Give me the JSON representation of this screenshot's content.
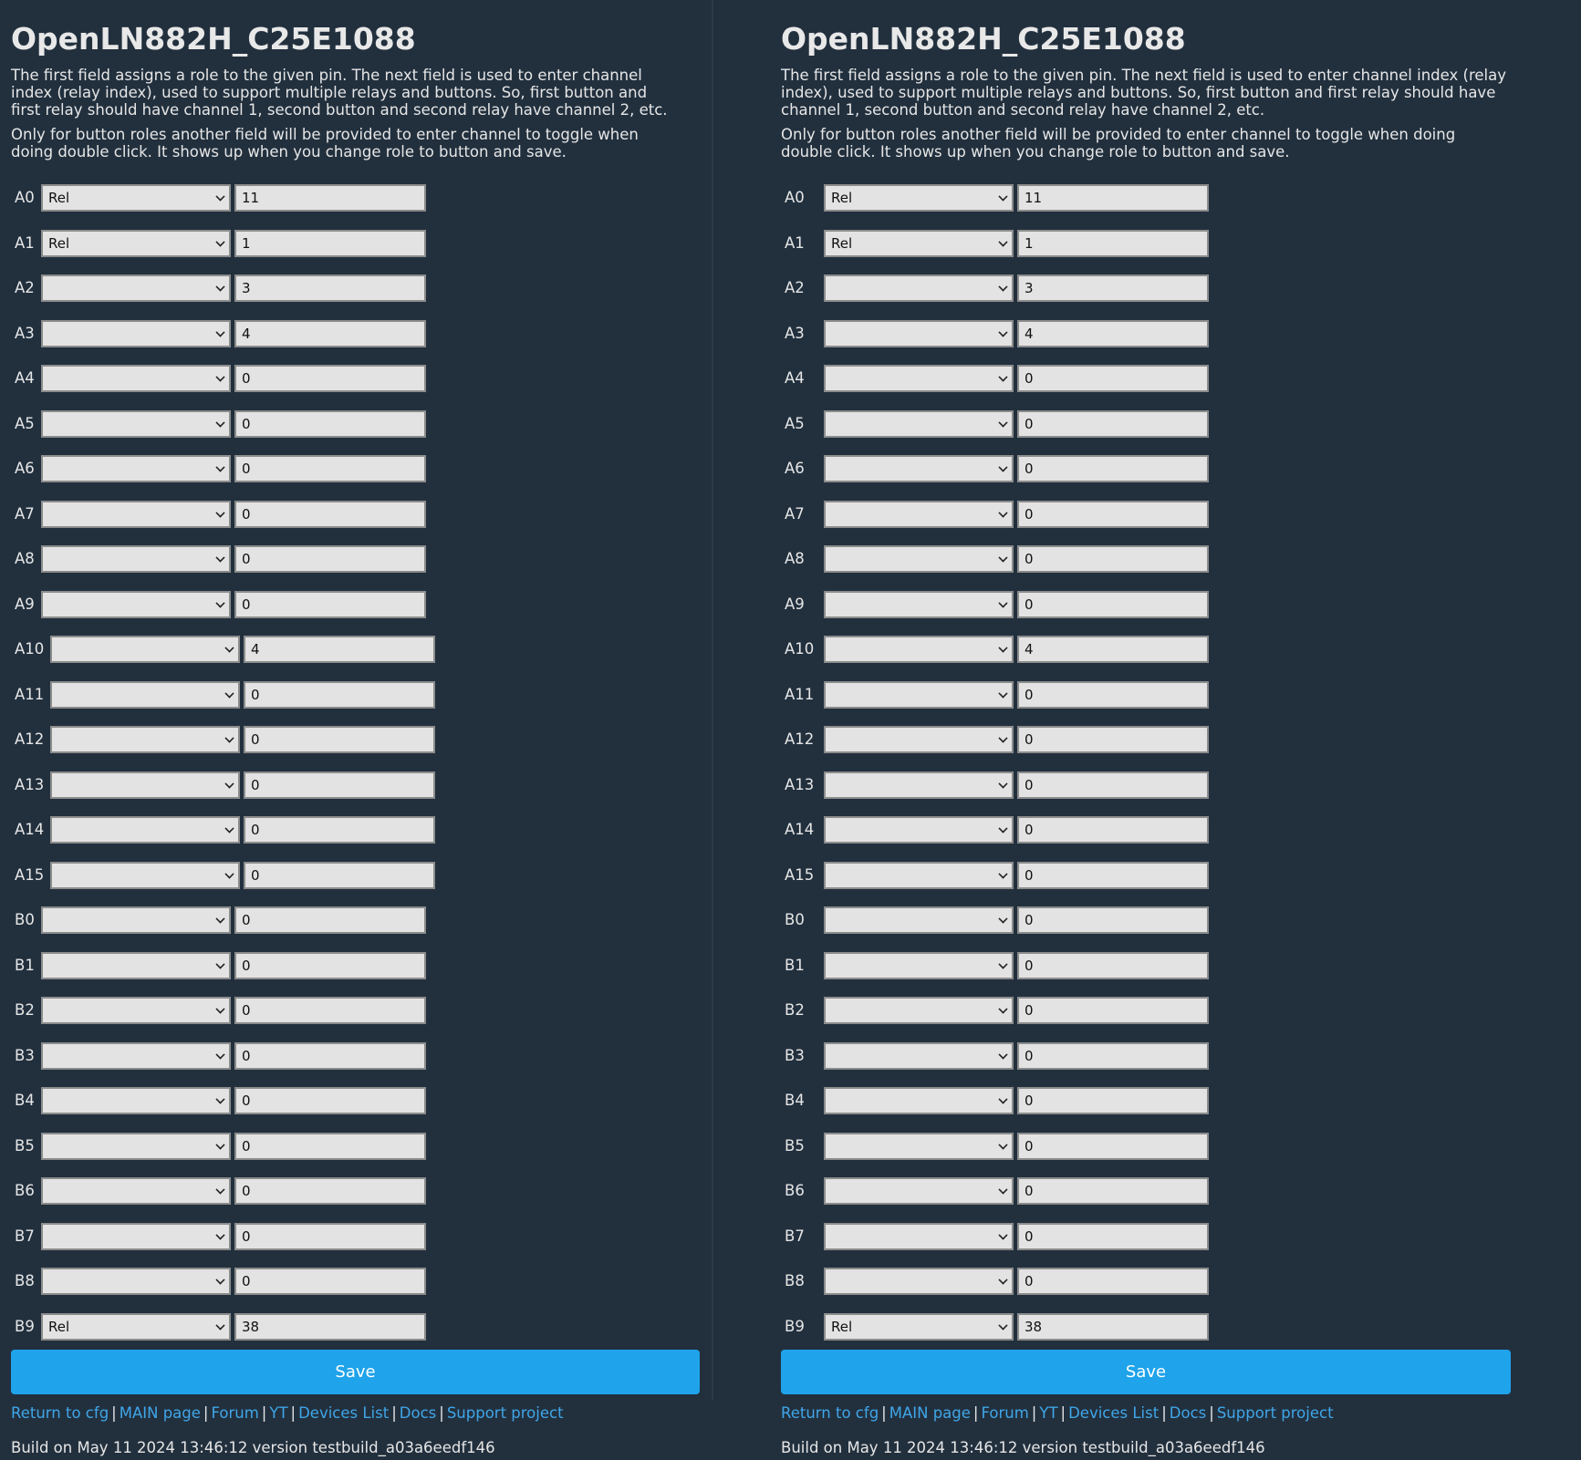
{
  "left": {
    "title": "OpenLN882H_C25E1088",
    "desc1": "The first field assigns a role to the given pin. The next field is used to enter channel index (relay index), used to support multiple relays and buttons. So, first button and first relay should have channel 1, second button and second relay have channel 2, etc.",
    "desc2": "Only for button roles another field will be provided to enter channel to toggle when doing double click. It shows up when you change role to button and save.",
    "save_label": "Save",
    "build": "Build on May 11 2024 13:46:12 version testbuild_a03a6eedf146"
  },
  "right": {
    "title": "OpenLN882H_C25E1088",
    "desc1": "The first field assigns a role to the given pin. The next field is used to enter channel index (relay index), used to support multiple relays and buttons. So, first button and first relay should have channel 1, second button and second relay have channel 2, etc.",
    "desc2": "Only for button roles another field will be provided to enter channel to toggle when doing double click. It shows up when you change role to button and save.",
    "save_label": "Save",
    "build": "Build on May 11 2024 13:46:12 version testbuild_a03a6eedf146"
  },
  "links": [
    {
      "label": "Return to cfg"
    },
    {
      "label": "MAIN page"
    },
    {
      "label": "Forum"
    },
    {
      "label": "YT"
    },
    {
      "label": "Devices List"
    },
    {
      "label": "Docs"
    },
    {
      "label": "Support project"
    }
  ],
  "pins": [
    {
      "pin": "A0",
      "role": "Rel",
      "channel": "11"
    },
    {
      "pin": "A1",
      "role": "Rel",
      "channel": "1"
    },
    {
      "pin": "A2",
      "role": "",
      "channel": "3"
    },
    {
      "pin": "A3",
      "role": "",
      "channel": "4"
    },
    {
      "pin": "A4",
      "role": "",
      "channel": "0"
    },
    {
      "pin": "A5",
      "role": "",
      "channel": "0"
    },
    {
      "pin": "A6",
      "role": "",
      "channel": "0"
    },
    {
      "pin": "A7",
      "role": "",
      "channel": "0"
    },
    {
      "pin": "A8",
      "role": "",
      "channel": "0"
    },
    {
      "pin": "A9",
      "role": "",
      "channel": "0"
    },
    {
      "pin": "A10",
      "role": "",
      "channel": "4"
    },
    {
      "pin": "A11",
      "role": "",
      "channel": "0"
    },
    {
      "pin": "A12",
      "role": "",
      "channel": "0"
    },
    {
      "pin": "A13",
      "role": "",
      "channel": "0"
    },
    {
      "pin": "A14",
      "role": "",
      "channel": "0"
    },
    {
      "pin": "A15",
      "role": "",
      "channel": "0"
    },
    {
      "pin": "B0",
      "role": "",
      "channel": "0"
    },
    {
      "pin": "B1",
      "role": "",
      "channel": "0"
    },
    {
      "pin": "B2",
      "role": "",
      "channel": "0"
    },
    {
      "pin": "B3",
      "role": "",
      "channel": "0"
    },
    {
      "pin": "B4",
      "role": "",
      "channel": "0"
    },
    {
      "pin": "B5",
      "role": "",
      "channel": "0"
    },
    {
      "pin": "B6",
      "role": "",
      "channel": "0"
    },
    {
      "pin": "B7",
      "role": "",
      "channel": "0"
    },
    {
      "pin": "B8",
      "role": "",
      "channel": "0"
    },
    {
      "pin": "B9",
      "role": "Rel",
      "channel": "38"
    }
  ]
}
